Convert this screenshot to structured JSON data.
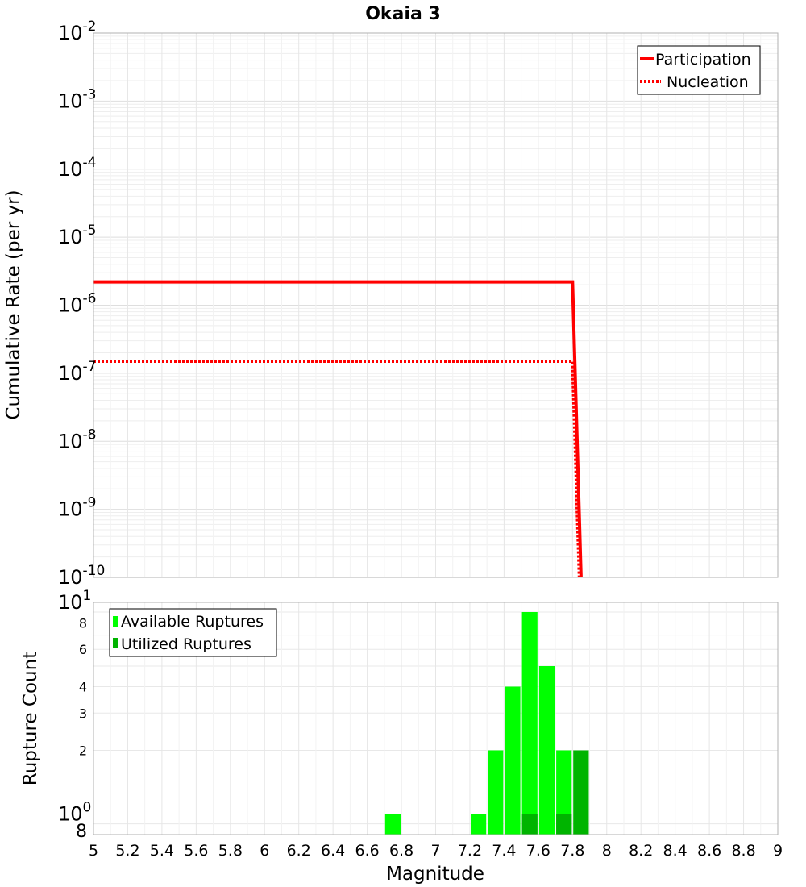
{
  "title": "Okaia 3",
  "chart_data": [
    {
      "type": "line",
      "ylabel": "Cumulative Rate (per yr)",
      "xlim": [
        5,
        9
      ],
      "ylim": [
        1e-10,
        0.01
      ],
      "yscale": "log",
      "y_tick_exponents": [
        "-2",
        "-3",
        "-4",
        "-5",
        "-6",
        "-7",
        "-8",
        "-9",
        "-10"
      ],
      "grid": true,
      "legend": "top-right",
      "series": [
        {
          "name": "Participation",
          "style": "solid",
          "color": "#ff0000",
          "points": [
            [
              5.0,
              2.2e-06
            ],
            [
              7.8,
              2.2e-06
            ],
            [
              7.85,
              1e-10
            ]
          ]
        },
        {
          "name": "Nucleation",
          "style": "dotted",
          "color": "#ff0000",
          "points": [
            [
              5.0,
              1.5e-07
            ],
            [
              7.8,
              1.5e-07
            ],
            [
              7.84,
              1e-10
            ]
          ]
        }
      ]
    },
    {
      "type": "bar",
      "xlabel": "Magnitude",
      "ylabel": "Rupture Count",
      "xlim": [
        5,
        9
      ],
      "ylim": [
        0.8,
        10
      ],
      "yscale": "log",
      "grid": true,
      "legend": "top-left",
      "bin_width": 0.1,
      "y_major_tick_labels": [
        {
          "value": 1,
          "base": "10",
          "exp": "0"
        },
        {
          "value": 10,
          "base": "10",
          "exp": "1"
        }
      ],
      "y_minor_tick_labels": [
        {
          "value": 0.8,
          "label": "8"
        },
        {
          "value": 2,
          "label": "2"
        },
        {
          "value": 3,
          "label": "3"
        },
        {
          "value": 4,
          "label": "4"
        },
        {
          "value": 6,
          "label": "6"
        },
        {
          "value": 8,
          "label": "8"
        }
      ],
      "x_tick_labels": [
        "5",
        "5.2",
        "5.4",
        "5.6",
        "5.8",
        "6",
        "6.2",
        "6.4",
        "6.6",
        "6.8",
        "7",
        "7.2",
        "7.4",
        "7.6",
        "7.8",
        "8",
        "8.2",
        "8.4",
        "8.6",
        "8.8",
        "9"
      ],
      "series": [
        {
          "name": "Available Ruptures",
          "color": "#00ff00",
          "x": [
            6.75,
            7.25,
            7.35,
            7.45,
            7.55,
            7.65,
            7.75,
            7.85
          ],
          "values": [
            1,
            1,
            2,
            4,
            9,
            5,
            2,
            2
          ]
        },
        {
          "name": "Utilized Ruptures",
          "color": "#00b400",
          "x": [
            7.55,
            7.75,
            7.85
          ],
          "values": [
            1,
            1,
            2
          ]
        }
      ]
    }
  ]
}
